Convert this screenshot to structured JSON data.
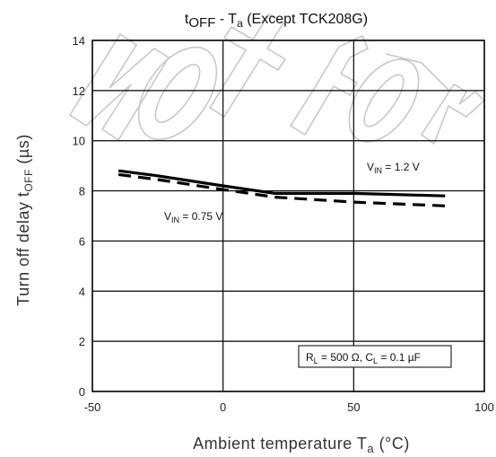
{
  "chart_data": {
    "type": "line",
    "title": {
      "parts": [
        {
          "text": "t",
          "sub": false
        },
        {
          "text": "OFF",
          "sub": true
        },
        {
          "text": " - T",
          "sub": false
        },
        {
          "text": "a",
          "sub": true
        },
        {
          "text": " (Except TCK208G)",
          "sub": false
        }
      ]
    },
    "xlabel": {
      "main": "Ambient temperature  T",
      "sub": "a",
      "unit": "  (°C)"
    },
    "ylabel": {
      "main": "Turn off delay  t",
      "sub": "OFF",
      "unit": " (µs)"
    },
    "xlim": [
      -50,
      100
    ],
    "ylim": [
      0,
      14
    ],
    "x_ticks": [
      "-50",
      "0",
      "50",
      "100"
    ],
    "y_ticks": [
      "0",
      "2",
      "4",
      "6",
      "8",
      "10",
      "12",
      "14"
    ],
    "grid": true,
    "series": [
      {
        "name_main": "V",
        "name_sub": "IN",
        "name_rest": " = 1.2 V",
        "style": "solid",
        "color": "#000000",
        "x": [
          -40,
          -25,
          0,
          20,
          50,
          85
        ],
        "y": [
          8.8,
          8.6,
          8.2,
          7.9,
          7.9,
          7.8
        ]
      },
      {
        "name_main": "V",
        "name_sub": "IN",
        "name_rest": " = 0.75 V",
        "style": "dashed",
        "color": "#000000",
        "x": [
          -40,
          -25,
          0,
          20,
          50,
          85
        ],
        "y": [
          8.65,
          8.45,
          8.05,
          7.75,
          7.55,
          7.4
        ]
      }
    ],
    "annotation": {
      "r_main": "R",
      "r_sub": "L",
      "r_rest": " = 500 Ω, C",
      "c_sub": "L",
      "c_rest": " = 0.1 µF"
    },
    "watermark_text": "Not for",
    "colors": {
      "line": "#000000",
      "grid": "#000000",
      "watermark": "#c8c8c8"
    }
  }
}
